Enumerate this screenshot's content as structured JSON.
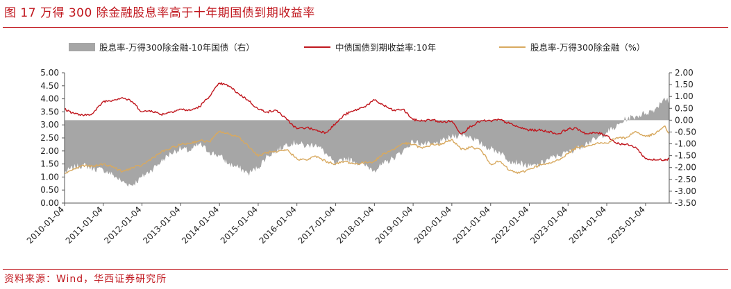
{
  "title": "图 17  万得 300 除金融股息率高于十年期国债到期收益率",
  "source": "资料来源：Wind，华西证券研究所",
  "chart_data": {
    "type": "line",
    "x_tick_labels": [
      "2010-01-04",
      "2011-01-04",
      "2012-01-04",
      "2013-01-04",
      "2014-01-04",
      "2015-01-04",
      "2016-01-04",
      "2017-01-04",
      "2018-01-04",
      "2019-01-04",
      "2020-01-04",
      "2021-01-04",
      "2022-01-04",
      "2023-01-04",
      "2024-01-04",
      "2025-01-04"
    ],
    "xlim": [
      "2010-01-04",
      "2025-08-15"
    ],
    "y_left": {
      "ylim": [
        0,
        5
      ],
      "ticks": [
        "0.00",
        "0.50",
        "1.00",
        "1.50",
        "2.00",
        "2.50",
        "3.00",
        "3.50",
        "4.00",
        "4.50",
        "5.00"
      ]
    },
    "y_right": {
      "ylim": [
        -3.5,
        2
      ],
      "ticks": [
        "-3.50",
        "-3.00",
        "-2.50",
        "-2.00",
        "-1.50",
        "-1.00",
        "-0.50",
        "0.00",
        "0.50",
        "1.00",
        "1.50",
        "2.00"
      ]
    },
    "legend_position": "top",
    "series": [
      {
        "name": "股息率-万得300除金融-10年国债（右）",
        "type": "area",
        "axis": "right",
        "color": "#a6a6a6",
        "x": [
          "2010-01-04",
          "2010-04-01",
          "2010-07-01",
          "2010-10-01",
          "2011-01-04",
          "2011-04-01",
          "2011-07-01",
          "2011-10-01",
          "2012-01-04",
          "2012-04-01",
          "2012-07-01",
          "2012-10-01",
          "2013-01-04",
          "2013-04-01",
          "2013-07-01",
          "2013-10-01",
          "2014-01-04",
          "2014-04-01",
          "2014-07-01",
          "2014-10-01",
          "2015-01-04",
          "2015-04-01",
          "2015-07-01",
          "2015-10-01",
          "2016-01-04",
          "2016-04-01",
          "2016-07-01",
          "2016-10-01",
          "2017-01-04",
          "2017-04-01",
          "2017-07-01",
          "2017-10-01",
          "2018-01-04",
          "2018-04-01",
          "2018-07-01",
          "2018-10-01",
          "2019-01-04",
          "2019-04-01",
          "2019-07-01",
          "2019-10-01",
          "2020-01-04",
          "2020-04-01",
          "2020-07-01",
          "2020-10-01",
          "2021-01-04",
          "2021-04-01",
          "2021-07-01",
          "2021-10-01",
          "2022-01-04",
          "2022-04-01",
          "2022-07-01",
          "2022-10-01",
          "2023-01-04",
          "2023-04-01",
          "2023-07-01",
          "2023-10-01",
          "2024-01-04",
          "2024-04-01",
          "2024-07-01",
          "2024-10-01",
          "2025-01-04",
          "2025-04-01",
          "2025-07-01",
          "2025-08-15"
        ],
        "values": [
          -2.2,
          -2.0,
          -1.9,
          -2.05,
          -2.1,
          -2.3,
          -2.6,
          -2.75,
          -2.4,
          -2.1,
          -1.75,
          -1.4,
          -1.2,
          -1.3,
          -1.0,
          -1.35,
          -1.5,
          -1.85,
          -2.0,
          -2.25,
          -2.0,
          -1.5,
          -1.3,
          -1.0,
          -0.95,
          -1.1,
          -1.0,
          -1.4,
          -1.9,
          -1.6,
          -1.75,
          -1.9,
          -2.1,
          -1.85,
          -1.6,
          -1.3,
          -0.9,
          -1.0,
          -1.05,
          -0.9,
          -0.7,
          -0.6,
          -0.7,
          -1.0,
          -1.2,
          -1.35,
          -1.7,
          -1.8,
          -1.95,
          -1.9,
          -1.65,
          -1.5,
          -1.35,
          -1.2,
          -0.95,
          -0.8,
          -0.5,
          -0.3,
          0.05,
          0.15,
          0.3,
          0.45,
          0.95,
          0.75
        ]
      },
      {
        "name": "中债国债到期收益率:10年",
        "type": "line",
        "axis": "left",
        "color": "#c0161d",
        "x": [
          "2010-01-04",
          "2010-04-01",
          "2010-07-01",
          "2010-10-01",
          "2011-01-04",
          "2011-04-01",
          "2011-07-01",
          "2011-10-01",
          "2012-01-04",
          "2012-04-01",
          "2012-07-01",
          "2012-10-01",
          "2013-01-04",
          "2013-04-01",
          "2013-07-01",
          "2013-10-01",
          "2014-01-04",
          "2014-04-01",
          "2014-07-01",
          "2014-10-01",
          "2015-01-04",
          "2015-04-01",
          "2015-07-01",
          "2015-10-01",
          "2016-01-04",
          "2016-04-01",
          "2016-07-01",
          "2016-10-01",
          "2017-01-04",
          "2017-04-01",
          "2017-07-01",
          "2017-10-01",
          "2018-01-04",
          "2018-04-01",
          "2018-07-01",
          "2018-10-01",
          "2019-01-04",
          "2019-04-01",
          "2019-07-01",
          "2019-10-01",
          "2020-01-04",
          "2020-04-01",
          "2020-07-01",
          "2020-10-01",
          "2021-01-04",
          "2021-04-01",
          "2021-07-01",
          "2021-10-01",
          "2022-01-04",
          "2022-04-01",
          "2022-07-01",
          "2022-10-01",
          "2023-01-04",
          "2023-04-01",
          "2023-07-01",
          "2023-10-01",
          "2024-01-04",
          "2024-04-01",
          "2024-07-01",
          "2024-10-01",
          "2025-01-04",
          "2025-04-01",
          "2025-07-01",
          "2025-08-15"
        ],
        "values": [
          3.6,
          3.45,
          3.35,
          3.45,
          3.9,
          3.95,
          4.05,
          3.9,
          3.5,
          3.55,
          3.4,
          3.5,
          3.6,
          3.55,
          3.7,
          4.1,
          4.6,
          4.5,
          4.2,
          3.95,
          3.6,
          3.5,
          3.55,
          3.2,
          2.85,
          2.9,
          2.8,
          2.7,
          3.05,
          3.4,
          3.55,
          3.7,
          3.95,
          3.75,
          3.55,
          3.6,
          3.2,
          3.15,
          3.2,
          3.1,
          3.15,
          2.65,
          2.95,
          3.15,
          3.15,
          3.2,
          3.05,
          2.9,
          2.8,
          2.8,
          2.75,
          2.65,
          2.85,
          2.85,
          2.65,
          2.7,
          2.6,
          2.3,
          2.25,
          2.15,
          1.7,
          1.65,
          1.67,
          1.7
        ]
      },
      {
        "name": "股息率-万得300除金融（%）",
        "type": "line",
        "axis": "left",
        "color": "#d8a95f",
        "x": [
          "2010-01-04",
          "2010-04-01",
          "2010-07-01",
          "2010-10-01",
          "2011-01-04",
          "2011-04-01",
          "2011-07-01",
          "2011-10-01",
          "2012-01-04",
          "2012-04-01",
          "2012-07-01",
          "2012-10-01",
          "2013-01-04",
          "2013-04-01",
          "2013-07-01",
          "2013-10-01",
          "2014-01-04",
          "2014-04-01",
          "2014-07-01",
          "2014-10-01",
          "2015-01-04",
          "2015-04-01",
          "2015-07-01",
          "2015-10-01",
          "2016-01-04",
          "2016-04-01",
          "2016-07-01",
          "2016-10-01",
          "2017-01-04",
          "2017-04-01",
          "2017-07-01",
          "2017-10-01",
          "2018-01-04",
          "2018-04-01",
          "2018-07-01",
          "2018-10-01",
          "2019-01-04",
          "2019-04-01",
          "2019-07-01",
          "2019-10-01",
          "2020-01-04",
          "2020-04-01",
          "2020-07-01",
          "2020-10-01",
          "2021-01-04",
          "2021-04-01",
          "2021-07-01",
          "2021-10-01",
          "2022-01-04",
          "2022-04-01",
          "2022-07-01",
          "2022-10-01",
          "2023-01-04",
          "2023-04-01",
          "2023-07-01",
          "2023-10-01",
          "2024-01-04",
          "2024-04-01",
          "2024-07-01",
          "2024-10-01",
          "2025-01-04",
          "2025-04-01",
          "2025-07-01",
          "2025-08-15"
        ],
        "values": [
          1.15,
          1.3,
          1.45,
          1.4,
          1.5,
          1.4,
          1.2,
          1.35,
          1.45,
          1.7,
          1.95,
          2.1,
          2.25,
          2.3,
          2.4,
          2.35,
          2.75,
          2.65,
          2.55,
          2.2,
          1.8,
          1.95,
          1.95,
          2.05,
          1.7,
          1.65,
          1.8,
          1.6,
          1.5,
          1.6,
          1.5,
          1.55,
          1.6,
          1.9,
          2.05,
          2.3,
          2.25,
          2.1,
          2.25,
          2.25,
          2.45,
          2.05,
          2.15,
          2.05,
          1.5,
          1.6,
          1.25,
          1.15,
          1.3,
          1.45,
          1.5,
          1.65,
          1.9,
          2.15,
          2.2,
          2.3,
          2.3,
          2.5,
          2.5,
          2.75,
          2.55,
          2.65,
          2.95,
          2.65
        ]
      }
    ]
  }
}
